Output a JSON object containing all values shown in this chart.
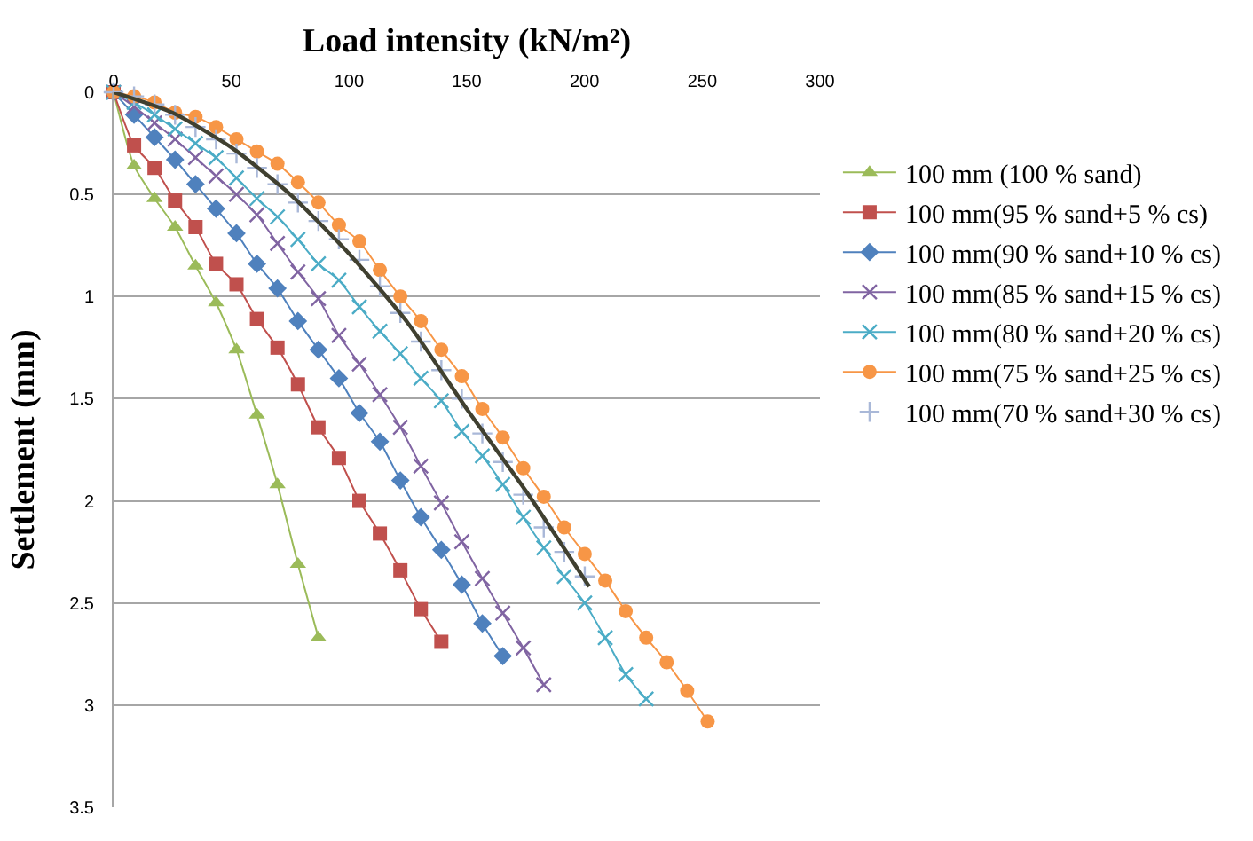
{
  "chart_data": {
    "type": "line",
    "xlabel": "Load intensity (kN/m²)",
    "ylabel": "Settlement (mm)",
    "xlim": [
      0,
      300
    ],
    "xticks": [
      0,
      50,
      100,
      150,
      200,
      250,
      300
    ],
    "ylim": [
      3.5,
      0
    ],
    "yticks": [
      0,
      0.5,
      1,
      1.5,
      2,
      2.5,
      3,
      3.5
    ],
    "grid": "y",
    "legend": "right",
    "line_style": "solid",
    "series": [
      {
        "name": "100 mm (100 % sand)",
        "color": "#9bbb59",
        "marker": "triangle",
        "x": [
          0,
          8.7,
          17.4,
          26.1,
          34.8,
          43.5,
          52.2,
          60.9,
          69.6,
          78.3,
          87
        ],
        "values": [
          0,
          0.36,
          0.52,
          0.66,
          0.85,
          1.03,
          1.26,
          1.58,
          1.92,
          2.31,
          2.67
        ]
      },
      {
        "name": "100 mm(95 % sand+5 % cs)",
        "color": "#c0504d",
        "marker": "square",
        "x": [
          0,
          8.7,
          17.4,
          26.1,
          34.8,
          43.5,
          52.2,
          60.9,
          69.6,
          78.3,
          87,
          95.7,
          104.4,
          113.1,
          121.8,
          130.5,
          139.2
        ],
        "values": [
          0,
          0.26,
          0.37,
          0.53,
          0.66,
          0.84,
          0.94,
          1.11,
          1.25,
          1.43,
          1.64,
          1.79,
          2.0,
          2.16,
          2.34,
          2.53,
          2.69
        ]
      },
      {
        "name": "100 mm(90 % sand+10 % cs)",
        "color": "#4f81bd",
        "marker": "diamond",
        "x": [
          0,
          8.7,
          17.4,
          26.1,
          34.8,
          43.5,
          52.2,
          60.9,
          69.6,
          78.3,
          87,
          95.7,
          104.4,
          113.1,
          121.8,
          130.5,
          139.2,
          147.9,
          156.6,
          165.3
        ],
        "values": [
          0,
          0.11,
          0.22,
          0.33,
          0.45,
          0.57,
          0.69,
          0.84,
          0.96,
          1.12,
          1.26,
          1.4,
          1.57,
          1.71,
          1.9,
          2.08,
          2.24,
          2.41,
          2.6,
          2.76
        ]
      },
      {
        "name": "100 mm(85 % sand+15 % cs)",
        "color": "#8064a2",
        "marker": "cross",
        "x": [
          0,
          8.7,
          17.4,
          26.1,
          34.8,
          43.5,
          52.2,
          60.9,
          69.6,
          78.3,
          87,
          95.7,
          104.4,
          113.1,
          121.8,
          130.5,
          139.2,
          147.9,
          156.6,
          165.3,
          174,
          182.7
        ],
        "values": [
          0,
          0.07,
          0.15,
          0.23,
          0.32,
          0.41,
          0.5,
          0.6,
          0.74,
          0.88,
          1.01,
          1.19,
          1.33,
          1.48,
          1.64,
          1.83,
          2.01,
          2.2,
          2.38,
          2.55,
          2.72,
          2.9
        ]
      },
      {
        "name": "100 mm(80 % sand+20 % cs)",
        "color": "#4bacc6",
        "marker": "cross",
        "x": [
          0,
          8.7,
          17.4,
          26.1,
          34.8,
          43.5,
          52.2,
          60.9,
          69.6,
          78.3,
          87,
          95.7,
          104.4,
          113.1,
          121.8,
          130.5,
          139.2,
          147.9,
          156.6,
          165.3,
          174,
          182.7,
          191.4,
          200.1,
          208.8,
          217.5,
          226.2
        ],
        "values": [
          0,
          0.05,
          0.11,
          0.18,
          0.25,
          0.32,
          0.42,
          0.52,
          0.61,
          0.72,
          0.84,
          0.92,
          1.05,
          1.17,
          1.28,
          1.4,
          1.51,
          1.66,
          1.78,
          1.92,
          2.08,
          2.23,
          2.37,
          2.5,
          2.67,
          2.85,
          2.97
        ]
      },
      {
        "name": "100 mm(75 % sand+25 % cs)",
        "color": "#f79646",
        "marker": "circle",
        "x": [
          0,
          8.7,
          17.4,
          26.1,
          34.8,
          43.5,
          52.2,
          60.9,
          69.6,
          78.3,
          87,
          95.7,
          104.4,
          113.1,
          121.8,
          130.5,
          139.2,
          147.9,
          156.6,
          165.3,
          174,
          182.7,
          191.4,
          200.1,
          208.8,
          217.5,
          226.2,
          234.9,
          243.6,
          252.3
        ],
        "values": [
          0,
          0.02,
          0.05,
          0.1,
          0.12,
          0.17,
          0.23,
          0.29,
          0.35,
          0.44,
          0.54,
          0.65,
          0.73,
          0.87,
          1.0,
          1.12,
          1.26,
          1.39,
          1.55,
          1.69,
          1.84,
          1.98,
          2.13,
          2.26,
          2.39,
          2.54,
          2.67,
          2.79,
          2.93,
          3.08
        ]
      },
      {
        "name": "100 mm(70 % sand+30 % cs)",
        "color": "#a9b8d8",
        "type": "scatter",
        "marker": "cross",
        "x": [
          0,
          8.7,
          17.4,
          26.1,
          34.8,
          43.5,
          52.2,
          60.9,
          69.6,
          78.3,
          87,
          95.7,
          104.4,
          113.1,
          121.8,
          130.5,
          139.2,
          147.9,
          156.6,
          165.3,
          174,
          182.7,
          191.4,
          200.1
        ],
        "values": [
          0,
          0.02,
          0.06,
          0.11,
          0.17,
          0.23,
          0.3,
          0.37,
          0.45,
          0.54,
          0.63,
          0.72,
          0.82,
          0.95,
          1.08,
          1.22,
          1.36,
          1.5,
          1.67,
          1.81,
          1.97,
          2.13,
          2.25,
          2.37
        ]
      },
      {
        "color": "#404030",
        "type": "line",
        "marker": "none",
        "x": [
          0,
          25,
          50,
          75,
          100,
          125,
          150,
          175,
          202
        ],
        "values": [
          0,
          0.1,
          0.27,
          0.5,
          0.79,
          1.13,
          1.55,
          1.95,
          2.42
        ]
      }
    ]
  }
}
